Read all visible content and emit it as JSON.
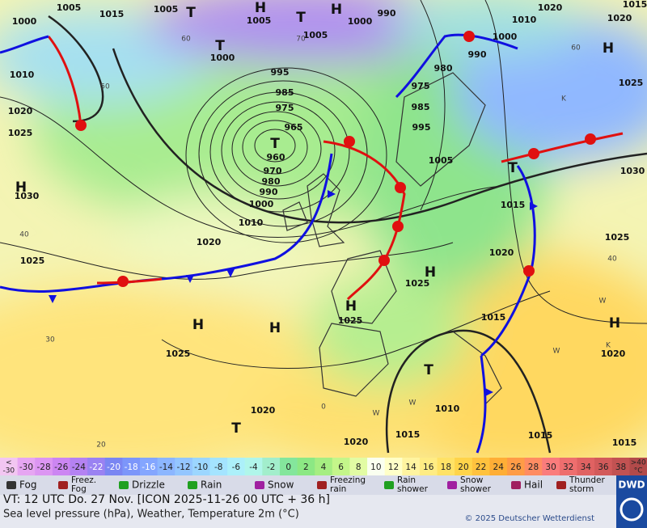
{
  "map": {
    "labels": [
      "1005",
      "1015",
      "1005",
      "T",
      "H",
      "T",
      "H",
      "990",
      "1005",
      "1000",
      "1020",
      "1015",
      "1020",
      "1000",
      "T",
      "1005",
      "1010",
      "1000",
      "990",
      "1000",
      "H",
      "1010",
      "980",
      "975",
      "995",
      "985",
      "975",
      "965",
      "T",
      "960",
      "970",
      "980",
      "990",
      "1000",
      "985",
      "995",
      "1020",
      "1025",
      "1025",
      "1005",
      "T",
      "1030",
      "H",
      "1030",
      "1015",
      "1010",
      "1020",
      "1025",
      "1020",
      "1025",
      "H",
      "1025",
      "H",
      "1025",
      "1015",
      "H",
      "H",
      "H",
      "1025",
      "1020",
      "T",
      "1010",
      "1020",
      "T",
      "1015",
      "1020",
      "1015",
      "1015"
    ],
    "isotherm_labels": [
      "60",
      "50",
      "70",
      "40",
      "30",
      "20",
      "60",
      "40",
      "0",
      "W",
      "K",
      "W",
      "K",
      "W",
      "W"
    ]
  },
  "scale": [
    {
      "label": [
        "<",
        "-30"
      ],
      "color": "#f2c6f2"
    },
    {
      "label": [
        "-30"
      ],
      "color": "#e6a6f2"
    },
    {
      "label": [
        "-28"
      ],
      "color": "#dc96f2"
    },
    {
      "label": [
        "-26"
      ],
      "color": "#cc86f2"
    },
    {
      "label": [
        "-24"
      ],
      "color": "#b482f2"
    },
    {
      "label": [
        "-22"
      ],
      "color": "#9a82f2"
    },
    {
      "label": [
        "-20"
      ],
      "color": "#7a86f2"
    },
    {
      "label": [
        "-18"
      ],
      "color": "#7c96fa"
    },
    {
      "label": [
        "-16"
      ],
      "color": "#84a6ff"
    },
    {
      "label": [
        "-14"
      ],
      "color": "#8cb6ff"
    },
    {
      "label": [
        "-12"
      ],
      "color": "#94c6ff"
    },
    {
      "label": [
        "-10"
      ],
      "color": "#9cd6ff"
    },
    {
      "label": [
        "-8"
      ],
      "color": "#a4e4ff"
    },
    {
      "label": [
        "-6"
      ],
      "color": "#acf0fa"
    },
    {
      "label": [
        "-4"
      ],
      "color": "#b0f6ea"
    },
    {
      "label": [
        "-2"
      ],
      "color": "#a2eecc"
    },
    {
      "label": [
        "0"
      ],
      "color": "#84e69c"
    },
    {
      "label": [
        "2"
      ],
      "color": "#8ce884"
    },
    {
      "label": [
        "4"
      ],
      "color": "#a6ee82"
    },
    {
      "label": [
        "6"
      ],
      "color": "#c4f68a"
    },
    {
      "label": [
        "8"
      ],
      "color": "#e2fca4"
    },
    {
      "label": [
        "10"
      ],
      "color": "#fafff0"
    },
    {
      "label": [
        "12"
      ],
      "color": "#ffffc8"
    },
    {
      "label": [
        "14"
      ],
      "color": "#fff4a0"
    },
    {
      "label": [
        "16"
      ],
      "color": "#ffec84"
    },
    {
      "label": [
        "18"
      ],
      "color": "#ffe266"
    },
    {
      "label": [
        "20"
      ],
      "color": "#ffd44a"
    },
    {
      "label": [
        "22"
      ],
      "color": "#ffc23e"
    },
    {
      "label": [
        "24"
      ],
      "color": "#ffae36"
    },
    {
      "label": [
        "26"
      ],
      "color": "#ff9c46"
    },
    {
      "label": [
        "28"
      ],
      "color": "#ff8c62"
    },
    {
      "label": [
        "30"
      ],
      "color": "#fa7c7c"
    },
    {
      "label": [
        "32"
      ],
      "color": "#ee6e6e"
    },
    {
      "label": [
        "34"
      ],
      "color": "#e06262"
    },
    {
      "label": [
        "36"
      ],
      "color": "#d25a5a"
    },
    {
      "label": [
        "38"
      ],
      "color": "#c25252"
    },
    {
      "label": [
        ">40",
        "°C"
      ],
      "color": "#b24a4a"
    }
  ],
  "weather_legend": [
    {
      "label": [
        "Fog"
      ]
    },
    {
      "label": [
        "Freez.",
        "Fog"
      ]
    },
    {
      "label": [
        "Drizzle"
      ]
    },
    {
      "label": [
        "Rain"
      ]
    },
    {
      "label": [
        "Snow"
      ]
    },
    {
      "label": [
        "Freezing",
        "rain"
      ]
    },
    {
      "label": [
        "Rain",
        "shower"
      ]
    },
    {
      "label": [
        "Snow",
        "shower"
      ]
    },
    {
      "label": [
        "Hail"
      ]
    },
    {
      "label": [
        "Thunder",
        "storm"
      ]
    }
  ],
  "footer": {
    "valid_time": "VT: 12 UTC Do.  27 Nov. [ICON 2025-11-26  00 UTC + 36 h]",
    "description": "Sea level pressure (hPa), Weather, Temperature 2m (°C)",
    "copyright": "© 2025 Deutscher Wetterdienst",
    "logo": "DWD"
  }
}
